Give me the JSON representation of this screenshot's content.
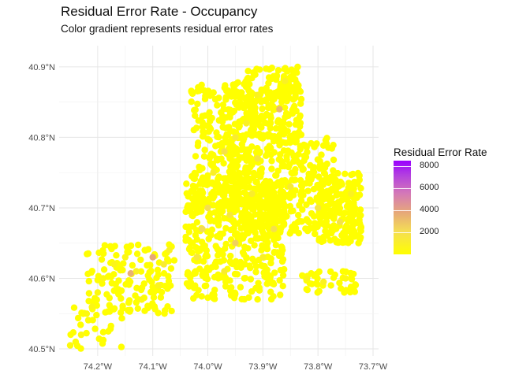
{
  "title": "Residual Error Rate - Occupancy",
  "subtitle": "Color gradient represents residual error rates",
  "chart_data": {
    "type": "scatter",
    "title": "Residual Error Rate - Occupancy",
    "subtitle": "Color gradient represents residual error rates",
    "xlabel": "",
    "ylabel": "",
    "x_ticks": [
      -74.2,
      -74.1,
      -74.0,
      -73.9,
      -73.8,
      -73.7
    ],
    "x_tick_labels": [
      "74.2°W",
      "74.1°W",
      "74.0°W",
      "73.9°W",
      "73.8°W",
      "73.7°W"
    ],
    "y_ticks": [
      40.5,
      40.6,
      40.7,
      40.8,
      40.9
    ],
    "y_tick_labels": [
      "40.5°N",
      "40.6°N",
      "40.7°N",
      "40.8°N",
      "40.9°N"
    ],
    "xlim": [
      -74.27,
      -73.69
    ],
    "ylim": [
      40.49,
      40.93
    ],
    "grid": true,
    "legend": {
      "title": "Residual Error Rate",
      "placement": "right",
      "breaks": [
        2000,
        4000,
        6000,
        8000
      ],
      "labels": [
        "2000",
        "4000",
        "6000",
        "8000"
      ],
      "range": [
        0,
        8500
      ],
      "low_color": "#ffff00",
      "high_color": "#9900ff"
    },
    "points": [
      {
        "lon": -74.25,
        "lat": 40.505,
        "v": 300
      },
      {
        "lon": -74.24,
        "lat": 40.51,
        "v": 200
      },
      {
        "lon": -74.23,
        "lat": 40.52,
        "v": 400
      },
      {
        "lon": -74.22,
        "lat": 40.55,
        "v": 300
      },
      {
        "lon": -74.21,
        "lat": 40.56,
        "v": 500
      },
      {
        "lon": -74.2,
        "lat": 40.58,
        "v": 300
      },
      {
        "lon": -74.19,
        "lat": 40.6,
        "v": 400
      },
      {
        "lon": -74.17,
        "lat": 40.62,
        "v": 600
      },
      {
        "lon": -74.15,
        "lat": 40.63,
        "v": 500
      },
      {
        "lon": -74.14,
        "lat": 40.607,
        "v": 3500
      },
      {
        "lon": -74.13,
        "lat": 40.61,
        "v": 800
      },
      {
        "lon": -74.12,
        "lat": 40.57,
        "v": 400
      },
      {
        "lon": -74.1,
        "lat": 40.63,
        "v": 3800
      },
      {
        "lon": -74.09,
        "lat": 40.59,
        "v": 700
      },
      {
        "lon": -74.08,
        "lat": 40.62,
        "v": 1200
      },
      {
        "lon": -74.07,
        "lat": 40.64,
        "v": 900
      },
      {
        "lon": -74.02,
        "lat": 40.63,
        "v": 1500
      },
      {
        "lon": -74.0,
        "lat": 40.7,
        "v": 2000
      },
      {
        "lon": -73.99,
        "lat": 40.75,
        "v": 1000
      },
      {
        "lon": -73.97,
        "lat": 40.78,
        "v": 1800
      },
      {
        "lon": -73.95,
        "lat": 40.8,
        "v": 1200
      },
      {
        "lon": -73.93,
        "lat": 40.82,
        "v": 900
      },
      {
        "lon": -73.91,
        "lat": 40.86,
        "v": 700
      },
      {
        "lon": -73.87,
        "lat": 40.84,
        "v": 3200
      },
      {
        "lon": -73.86,
        "lat": 40.88,
        "v": 900
      },
      {
        "lon": -73.92,
        "lat": 40.72,
        "v": 1100
      },
      {
        "lon": -73.85,
        "lat": 40.73,
        "v": 1300
      },
      {
        "lon": -73.8,
        "lat": 40.7,
        "v": 1500
      },
      {
        "lon": -73.76,
        "lat": 40.68,
        "v": 1700
      },
      {
        "lon": -73.74,
        "lat": 40.72,
        "v": 800
      },
      {
        "lon": -73.95,
        "lat": 40.65,
        "v": 2500
      },
      {
        "lon": -73.97,
        "lat": 40.61,
        "v": 1100
      },
      {
        "lon": -73.9,
        "lat": 40.63,
        "v": 900
      },
      {
        "lon": -73.82,
        "lat": 40.6,
        "v": 600
      },
      {
        "lon": -73.79,
        "lat": 40.595,
        "v": 800
      },
      {
        "lon": -73.75,
        "lat": 40.6,
        "v": 400
      },
      {
        "lon": -74.01,
        "lat": 40.67,
        "v": 2200
      },
      {
        "lon": -73.91,
        "lat": 40.77,
        "v": 1600
      },
      {
        "lon": -73.88,
        "lat": 40.67,
        "v": 1900
      },
      {
        "lon": -73.96,
        "lat": 40.69,
        "v": 1400
      }
    ]
  }
}
